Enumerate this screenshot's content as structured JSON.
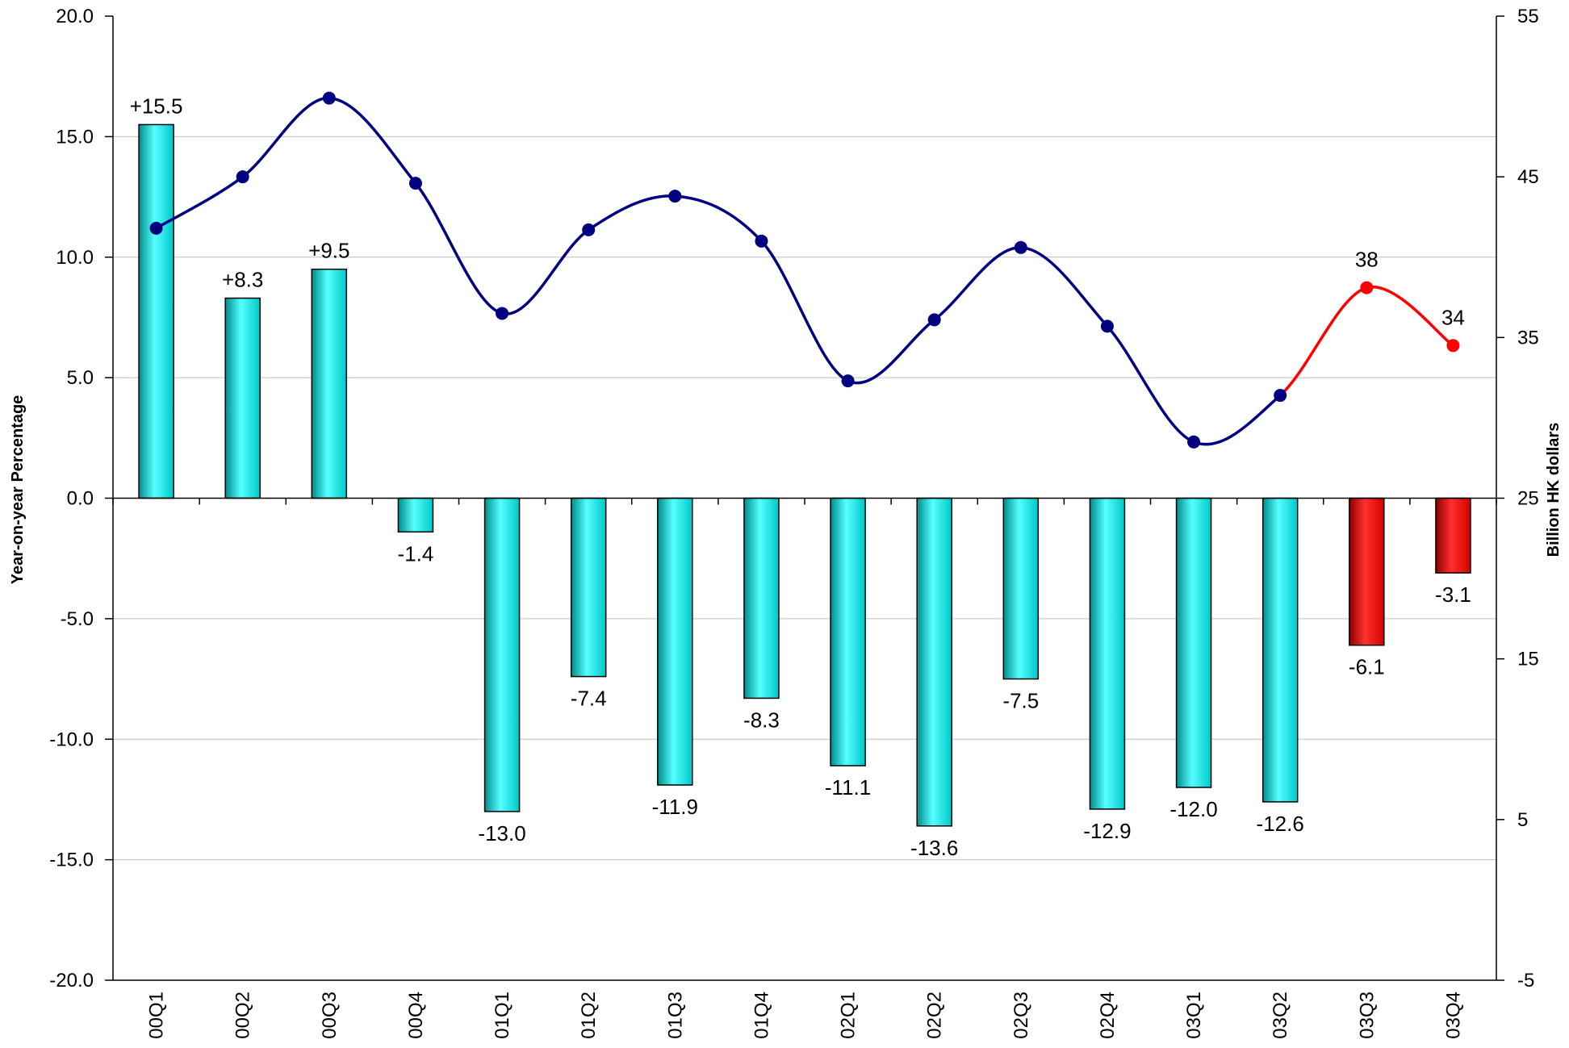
{
  "chart_data": {
    "type": "bar",
    "categories": [
      "00Q1",
      "00Q2",
      "00Q3",
      "00Q4",
      "01Q1",
      "01Q2",
      "01Q3",
      "01Q4",
      "02Q1",
      "02Q2",
      "02Q3",
      "02Q4",
      "03Q1",
      "03Q2",
      "03Q3",
      "03Q4"
    ],
    "series": [
      {
        "type": "bar",
        "axis": "left",
        "values": [
          15.5,
          8.3,
          9.5,
          -1.4,
          -13.0,
          -7.4,
          -11.9,
          -8.3,
          -11.1,
          -13.6,
          -7.5,
          -12.9,
          -12.0,
          -12.6,
          -6.1,
          -3.1
        ],
        "labels": [
          "+15.5",
          "+8.3",
          "+9.5",
          "-1.4",
          "-13.0",
          "-7.4",
          "-11.9",
          "-8.3",
          "-11.1",
          "-13.6",
          "-7.5",
          "-12.9",
          "-12.0",
          "-12.6",
          "-6.1",
          "-3.1"
        ],
        "colors": [
          "#00e5e5",
          "#00e5e5",
          "#00e5e5",
          "#00e5e5",
          "#00e5e5",
          "#00e5e5",
          "#00e5e5",
          "#00e5e5",
          "#00e5e5",
          "#00e5e5",
          "#00e5e5",
          "#00e5e5",
          "#00e5e5",
          "#00e5e5",
          "#ff0000",
          "#ff0000"
        ]
      },
      {
        "type": "line",
        "axis": "right",
        "values": [
          41.8,
          45.0,
          49.9,
          44.6,
          36.5,
          41.7,
          43.8,
          41.0,
          32.3,
          36.1,
          40.6,
          35.7,
          28.5,
          31.4,
          38.1,
          34.5
        ],
        "labels": [
          "",
          "",
          "",
          "",
          "",
          "",
          "",
          "",
          "",
          "",
          "",
          "",
          "",
          "",
          "38",
          "34"
        ],
        "color": "#000080",
        "highlight_color": "#ff0000",
        "highlight_from_index": 13
      }
    ],
    "title": "",
    "ylabel": "Year-on-year Percentage",
    "y2label": "Billion HK dollars",
    "ylim": [
      -20,
      20
    ],
    "y2lim": [
      -5,
      55
    ],
    "yticks": [
      "20.0",
      "15.0",
      "10.0",
      "5.0",
      "0.0",
      "-5.0",
      "-10.0",
      "-15.0",
      "-20.0"
    ],
    "y2ticks": [
      "55",
      "45",
      "35",
      "25",
      "15",
      "5",
      "-5"
    ],
    "grid": true,
    "legend": "none"
  }
}
